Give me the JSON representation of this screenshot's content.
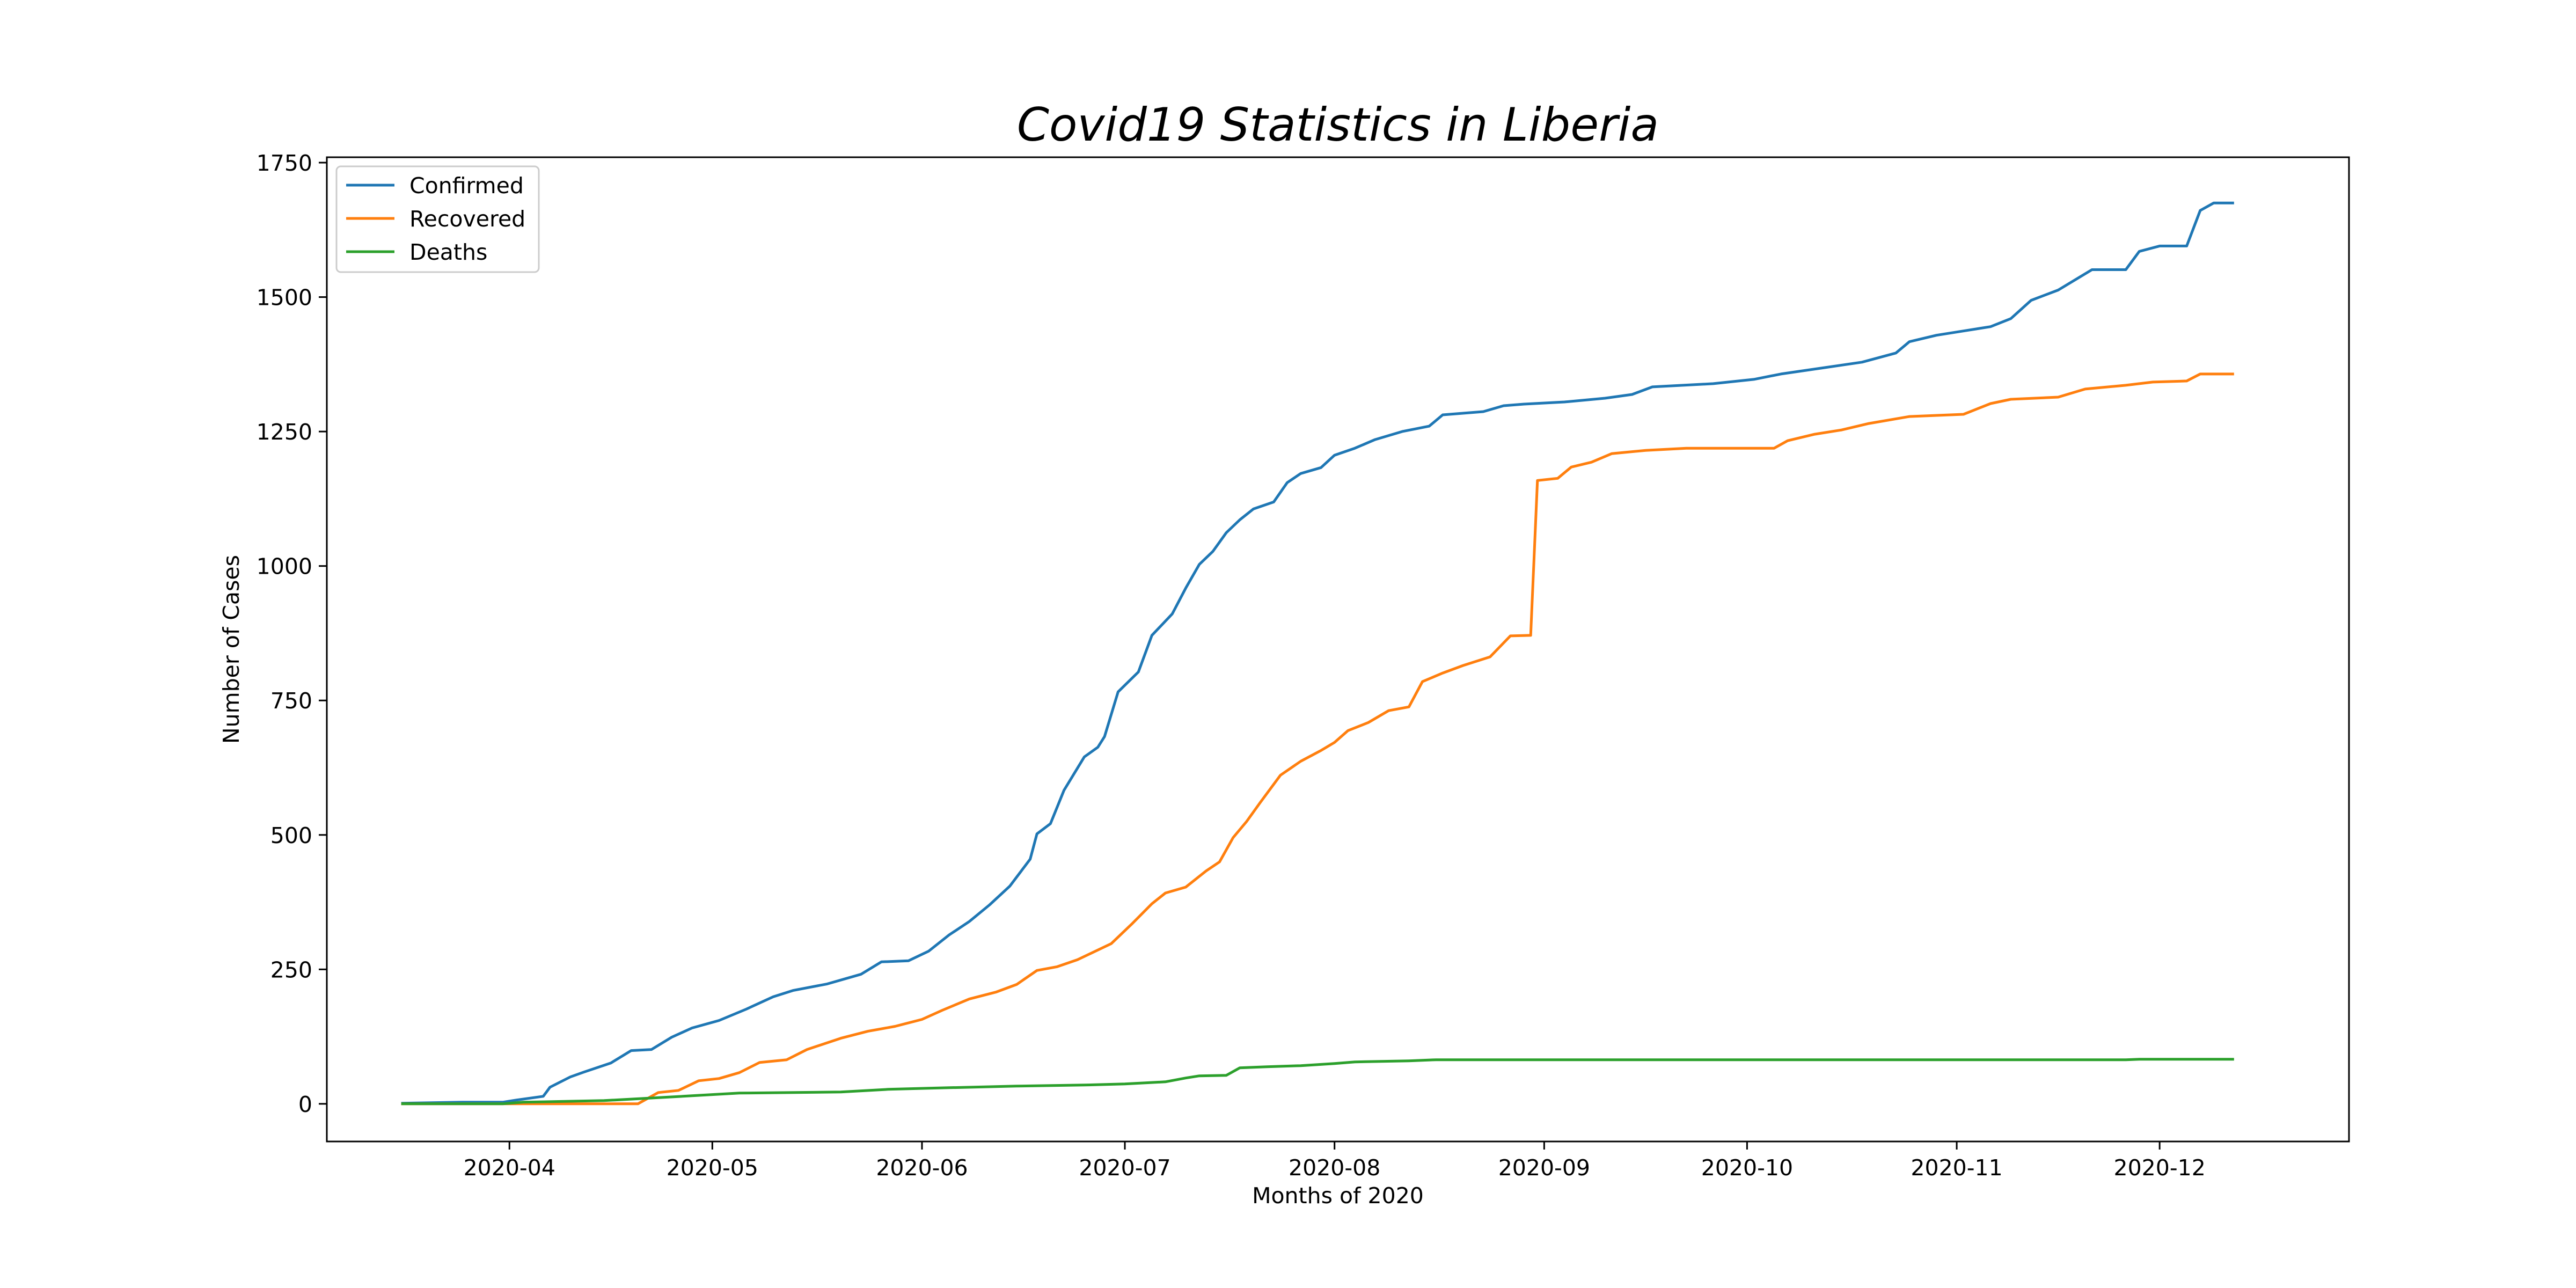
{
  "chart_data": {
    "type": "line",
    "title": "Covid19 Statistics in Liberia",
    "xlabel": "Months of 2020",
    "ylabel": "Number of Cases",
    "xlim": [
      "2020-03-05",
      "2020-12-29"
    ],
    "ylim": [
      -70,
      1760
    ],
    "x_ticks": [
      "2020-04",
      "2020-05",
      "2020-06",
      "2020-07",
      "2020-08",
      "2020-09",
      "2020-10",
      "2020-11",
      "2020-12"
    ],
    "y_ticks": [
      0,
      250,
      500,
      750,
      1000,
      1250,
      1500,
      1750
    ],
    "grid": false,
    "legend_position": "top-left",
    "series": [
      {
        "name": "Confirmed",
        "color": "#1f77b4",
        "points": [
          [
            "2020-03-16",
            1
          ],
          [
            "2020-03-25",
            3
          ],
          [
            "2020-03-31",
            3
          ],
          [
            "2020-04-02",
            7
          ],
          [
            "2020-04-06",
            14
          ],
          [
            "2020-04-07",
            31
          ],
          [
            "2020-04-10",
            50
          ],
          [
            "2020-04-12",
            59
          ],
          [
            "2020-04-16",
            76
          ],
          [
            "2020-04-19",
            99
          ],
          [
            "2020-04-22",
            101
          ],
          [
            "2020-04-25",
            124
          ],
          [
            "2020-04-28",
            141
          ],
          [
            "2020-05-02",
            155
          ],
          [
            "2020-05-06",
            176
          ],
          [
            "2020-05-10",
            199
          ],
          [
            "2020-05-13",
            211
          ],
          [
            "2020-05-18",
            223
          ],
          [
            "2020-05-23",
            241
          ],
          [
            "2020-05-26",
            264
          ],
          [
            "2020-05-30",
            266
          ],
          [
            "2020-06-02",
            284
          ],
          [
            "2020-06-05",
            314
          ],
          [
            "2020-06-08",
            339
          ],
          [
            "2020-06-11",
            370
          ],
          [
            "2020-06-14",
            405
          ],
          [
            "2020-06-17",
            455
          ],
          [
            "2020-06-18",
            502
          ],
          [
            "2020-06-20",
            521
          ],
          [
            "2020-06-22",
            583
          ],
          [
            "2020-06-25",
            645
          ],
          [
            "2020-06-27",
            663
          ],
          [
            "2020-06-28",
            683
          ],
          [
            "2020-06-30",
            766
          ],
          [
            "2020-07-03",
            803
          ],
          [
            "2020-07-05",
            871
          ],
          [
            "2020-07-08",
            911
          ],
          [
            "2020-07-10",
            959
          ],
          [
            "2020-07-12",
            1003
          ],
          [
            "2020-07-14",
            1027
          ],
          [
            "2020-07-16",
            1062
          ],
          [
            "2020-07-18",
            1086
          ],
          [
            "2020-07-20",
            1106
          ],
          [
            "2020-07-23",
            1119
          ],
          [
            "2020-07-25",
            1155
          ],
          [
            "2020-07-27",
            1172
          ],
          [
            "2020-07-30",
            1183
          ],
          [
            "2020-08-01",
            1206
          ],
          [
            "2020-08-04",
            1219
          ],
          [
            "2020-08-07",
            1235
          ],
          [
            "2020-08-11",
            1250
          ],
          [
            "2020-08-15",
            1260
          ],
          [
            "2020-08-17",
            1281
          ],
          [
            "2020-08-23",
            1287
          ],
          [
            "2020-08-26",
            1298
          ],
          [
            "2020-08-29",
            1301
          ],
          [
            "2020-09-04",
            1305
          ],
          [
            "2020-09-10",
            1312
          ],
          [
            "2020-09-14",
            1319
          ],
          [
            "2020-09-17",
            1333
          ],
          [
            "2020-09-26",
            1339
          ],
          [
            "2020-10-02",
            1347
          ],
          [
            "2020-10-06",
            1357
          ],
          [
            "2020-10-12",
            1368
          ],
          [
            "2020-10-18",
            1379
          ],
          [
            "2020-10-23",
            1396
          ],
          [
            "2020-10-25",
            1417
          ],
          [
            "2020-10-29",
            1429
          ],
          [
            "2020-11-02",
            1437
          ],
          [
            "2020-11-06",
            1445
          ],
          [
            "2020-11-09",
            1460
          ],
          [
            "2020-11-12",
            1494
          ],
          [
            "2020-11-16",
            1513
          ],
          [
            "2020-11-21",
            1551
          ],
          [
            "2020-11-26",
            1551
          ],
          [
            "2020-11-28",
            1585
          ],
          [
            "2020-12-01",
            1595
          ],
          [
            "2020-12-05",
            1595
          ],
          [
            "2020-12-07",
            1661
          ],
          [
            "2020-12-09",
            1675
          ],
          [
            "2020-12-12",
            1675
          ]
        ]
      },
      {
        "name": "Recovered",
        "color": "#ff7f0e",
        "points": [
          [
            "2020-03-16",
            0
          ],
          [
            "2020-04-20",
            0
          ],
          [
            "2020-04-23",
            21
          ],
          [
            "2020-04-26",
            25
          ],
          [
            "2020-04-29",
            43
          ],
          [
            "2020-05-02",
            47
          ],
          [
            "2020-05-05",
            58
          ],
          [
            "2020-05-08",
            77
          ],
          [
            "2020-05-12",
            82
          ],
          [
            "2020-05-15",
            101
          ],
          [
            "2020-05-20",
            122
          ],
          [
            "2020-05-24",
            135
          ],
          [
            "2020-05-28",
            144
          ],
          [
            "2020-06-01",
            157
          ],
          [
            "2020-06-04",
            174
          ],
          [
            "2020-06-08",
            195
          ],
          [
            "2020-06-12",
            208
          ],
          [
            "2020-06-15",
            222
          ],
          [
            "2020-06-18",
            248
          ],
          [
            "2020-06-21",
            255
          ],
          [
            "2020-06-24",
            268
          ],
          [
            "2020-06-29",
            298
          ],
          [
            "2020-07-02",
            334
          ],
          [
            "2020-07-05",
            372
          ],
          [
            "2020-07-07",
            392
          ],
          [
            "2020-07-10",
            403
          ],
          [
            "2020-07-13",
            433
          ],
          [
            "2020-07-15",
            450
          ],
          [
            "2020-07-17",
            495
          ],
          [
            "2020-07-19",
            525
          ],
          [
            "2020-07-21",
            560
          ],
          [
            "2020-07-24",
            611
          ],
          [
            "2020-07-27",
            637
          ],
          [
            "2020-07-30",
            657
          ],
          [
            "2020-08-01",
            672
          ],
          [
            "2020-08-03",
            694
          ],
          [
            "2020-08-06",
            709
          ],
          [
            "2020-08-09",
            731
          ],
          [
            "2020-08-12",
            738
          ],
          [
            "2020-08-14",
            785
          ],
          [
            "2020-08-17",
            801
          ],
          [
            "2020-08-20",
            815
          ],
          [
            "2020-08-24",
            831
          ],
          [
            "2020-08-27",
            870
          ],
          [
            "2020-08-30",
            871
          ],
          [
            "2020-08-31",
            1159
          ],
          [
            "2020-09-03",
            1163
          ],
          [
            "2020-09-05",
            1184
          ],
          [
            "2020-09-08",
            1193
          ],
          [
            "2020-09-11",
            1209
          ],
          [
            "2020-09-16",
            1215
          ],
          [
            "2020-09-22",
            1219
          ],
          [
            "2020-10-05",
            1219
          ],
          [
            "2020-10-07",
            1233
          ],
          [
            "2020-10-11",
            1245
          ],
          [
            "2020-10-15",
            1253
          ],
          [
            "2020-10-19",
            1265
          ],
          [
            "2020-10-25",
            1278
          ],
          [
            "2020-11-02",
            1282
          ],
          [
            "2020-11-06",
            1302
          ],
          [
            "2020-11-09",
            1310
          ],
          [
            "2020-11-16",
            1314
          ],
          [
            "2020-11-20",
            1329
          ],
          [
            "2020-11-26",
            1336
          ],
          [
            "2020-11-30",
            1342
          ],
          [
            "2020-12-05",
            1344
          ],
          [
            "2020-12-07",
            1357
          ],
          [
            "2020-12-12",
            1357
          ]
        ]
      },
      {
        "name": "Deaths",
        "color": "#2ca02c",
        "points": [
          [
            "2020-03-16",
            0
          ],
          [
            "2020-03-31",
            0
          ],
          [
            "2020-04-03",
            3
          ],
          [
            "2020-04-15",
            6
          ],
          [
            "2020-04-28",
            15
          ],
          [
            "2020-05-05",
            20
          ],
          [
            "2020-05-20",
            22
          ],
          [
            "2020-05-27",
            27
          ],
          [
            "2020-06-05",
            30
          ],
          [
            "2020-06-15",
            33
          ],
          [
            "2020-06-25",
            35
          ],
          [
            "2020-07-01",
            37
          ],
          [
            "2020-07-07",
            41
          ],
          [
            "2020-07-10",
            48
          ],
          [
            "2020-07-12",
            52
          ],
          [
            "2020-07-16",
            53
          ],
          [
            "2020-07-18",
            67
          ],
          [
            "2020-07-22",
            69
          ],
          [
            "2020-07-27",
            71
          ],
          [
            "2020-08-01",
            75
          ],
          [
            "2020-08-04",
            78
          ],
          [
            "2020-08-12",
            80
          ],
          [
            "2020-08-16",
            82
          ],
          [
            "2020-11-26",
            82
          ],
          [
            "2020-11-28",
            83
          ],
          [
            "2020-12-12",
            83
          ]
        ]
      }
    ]
  }
}
